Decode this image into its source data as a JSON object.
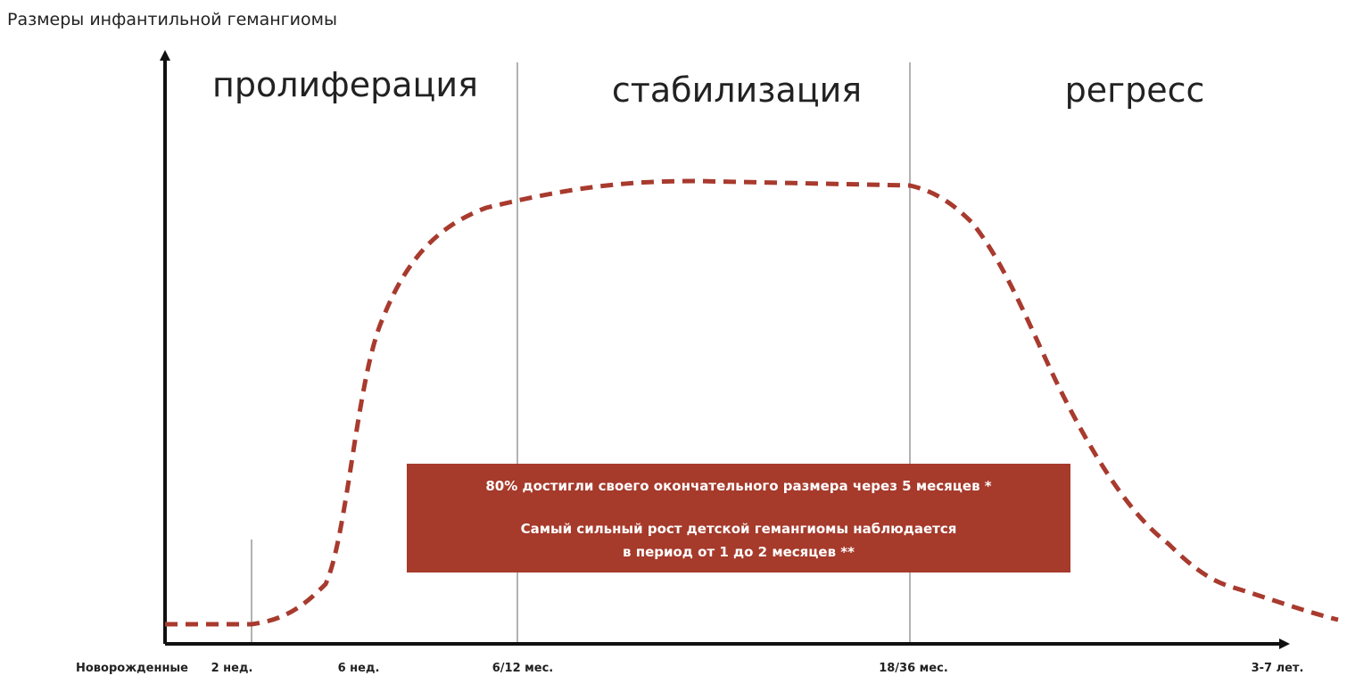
{
  "y_axis_label": "Размеры инфантильной гемангиомы",
  "phases": [
    "пролиферация",
    "стабилизация",
    "регресс"
  ],
  "x_labels": [
    "Новорожденные",
    "2 нед.",
    "6 нед.",
    "6/12 мес.",
    "18/36 мес.",
    "3-7 лет."
  ],
  "note": [
    "80% достигли своего окончательного размера через 5 месяцев *",
    "Самый сильный рост детской гемангиомы наблюдается",
    "в период от 1 до 2 месяцев **"
  ]
}
